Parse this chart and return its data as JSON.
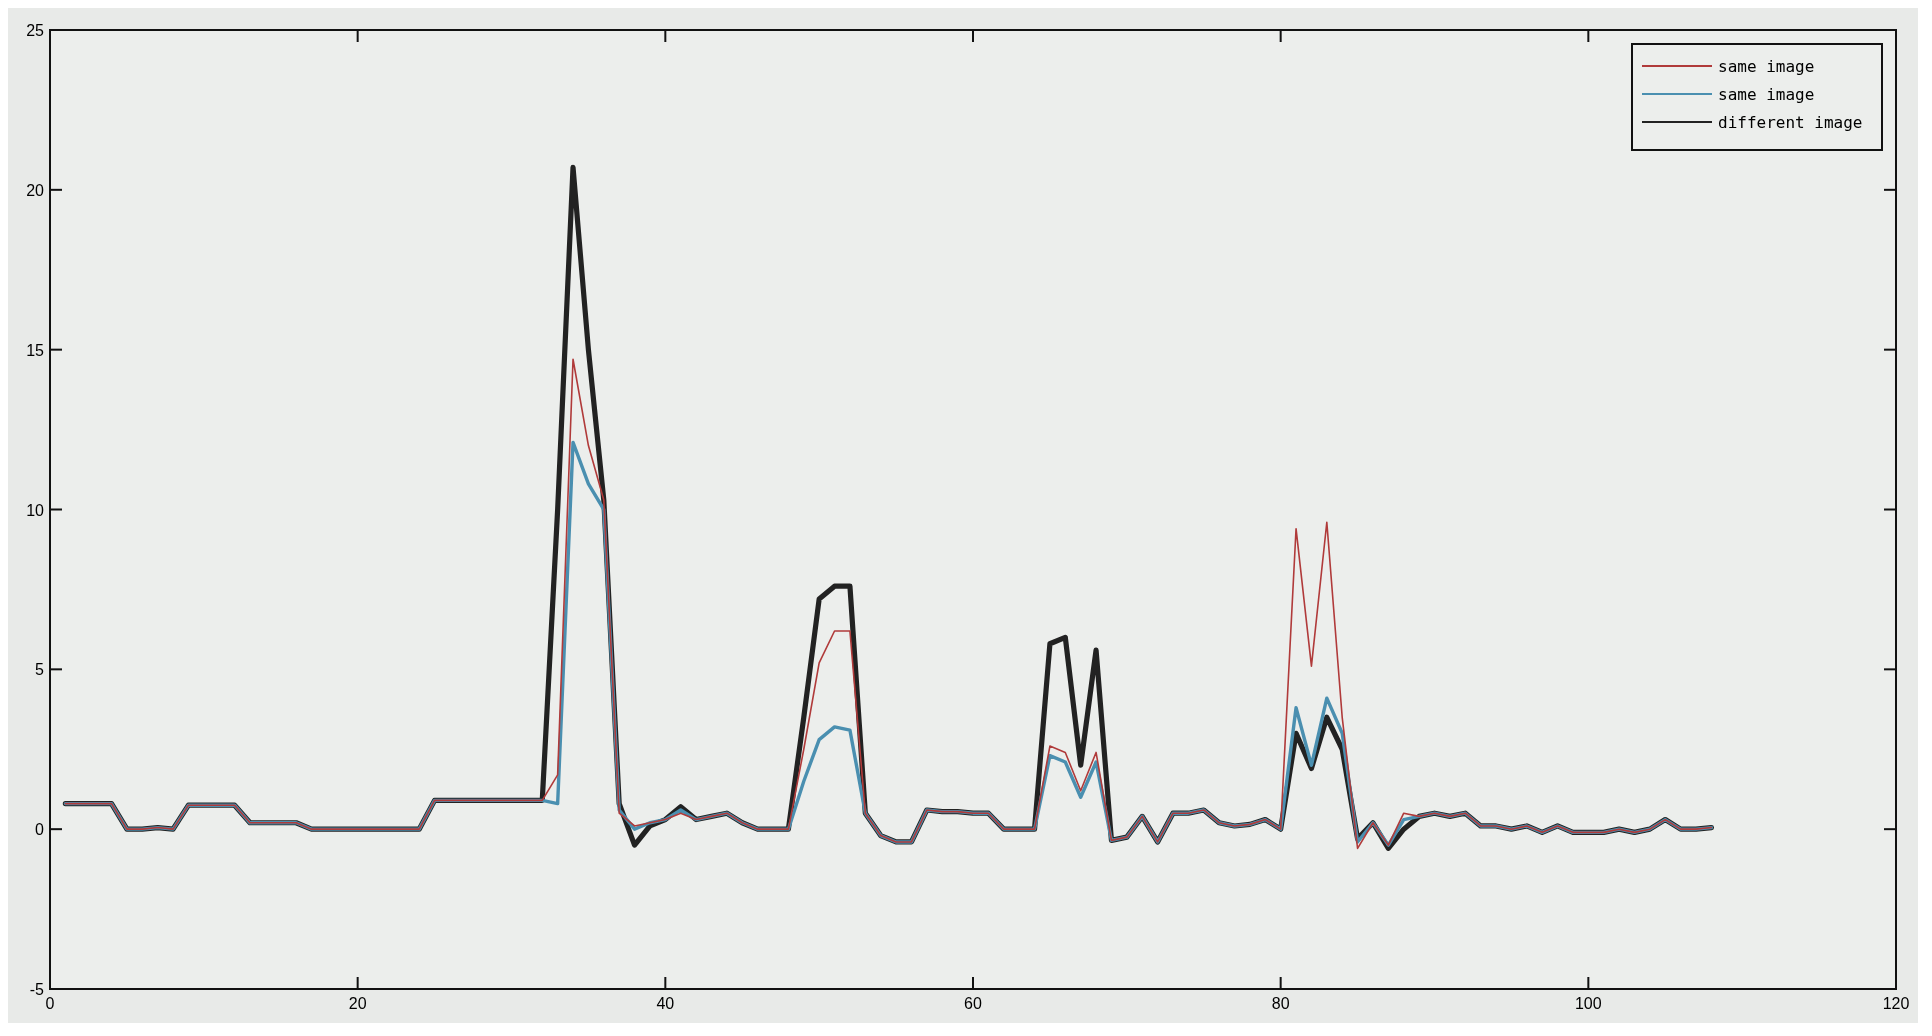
{
  "chart_data": {
    "type": "line",
    "x": [
      1,
      2,
      3,
      4,
      5,
      6,
      7,
      8,
      9,
      10,
      11,
      12,
      13,
      14,
      15,
      16,
      17,
      18,
      19,
      20,
      21,
      22,
      23,
      24,
      25,
      26,
      27,
      28,
      29,
      30,
      31,
      32,
      33,
      34,
      35,
      36,
      37,
      38,
      39,
      40,
      41,
      42,
      43,
      44,
      45,
      46,
      47,
      48,
      49,
      50,
      51,
      52,
      53,
      54,
      55,
      56,
      57,
      58,
      59,
      60,
      61,
      62,
      63,
      64,
      65,
      66,
      67,
      68,
      69,
      70,
      71,
      72,
      73,
      74,
      75,
      76,
      77,
      78,
      79,
      80,
      81,
      82,
      83,
      84,
      85,
      86,
      87,
      88,
      89,
      90,
      91,
      92,
      93,
      94,
      95,
      96,
      97,
      98,
      99,
      100,
      101,
      102,
      103,
      104,
      105,
      106,
      107,
      108
    ],
    "series": [
      {
        "name": "same image",
        "color": "#b03a3a",
        "values": [
          0.8,
          0.8,
          0.8,
          0.8,
          0,
          0,
          0.05,
          0,
          0.75,
          0.75,
          0.75,
          0.75,
          0.2,
          0.2,
          0.2,
          0.2,
          0,
          0,
          0,
          0,
          0,
          0,
          0,
          0,
          0.9,
          0.9,
          0.9,
          0.9,
          0.9,
          0.9,
          0.9,
          0.9,
          1.7,
          14.7,
          12,
          10.3,
          0.5,
          0.1,
          0.2,
          0.3,
          0.5,
          0.3,
          0.4,
          0.5,
          0.2,
          0,
          0,
          0,
          2.5,
          5.2,
          6.2,
          6.2,
          0.5,
          -0.2,
          -0.4,
          -0.4,
          0.6,
          0.55,
          0.55,
          0.5,
          0.5,
          0,
          0,
          0,
          2.6,
          2.4,
          1.2,
          2.4,
          -0.35,
          -0.25,
          0.4,
          -0.4,
          0.5,
          0.5,
          0.6,
          0.2,
          0.1,
          0.15,
          0.3,
          0,
          9.4,
          5.1,
          9.6,
          3.5,
          -0.6,
          0.2,
          -0.5,
          0.5,
          0.4,
          0.5,
          0.4,
          0.5,
          0.1,
          0.1,
          0,
          0.1,
          -0.1,
          0.1,
          -0.1,
          -0.1,
          -0.1,
          0,
          -0.1,
          0,
          0.3,
          0,
          0,
          0.05
        ]
      },
      {
        "name": "same image",
        "color": "#4a8fb0",
        "values": [
          0.8,
          0.8,
          0.8,
          0.8,
          0,
          0,
          0.05,
          0,
          0.75,
          0.75,
          0.75,
          0.75,
          0.2,
          0.2,
          0.2,
          0.2,
          0,
          0,
          0,
          0,
          0,
          0,
          0,
          0,
          0.9,
          0.9,
          0.9,
          0.9,
          0.9,
          0.9,
          0.9,
          0.9,
          0.8,
          12.1,
          10.8,
          10,
          0.6,
          0,
          0.2,
          0.3,
          0.6,
          0.3,
          0.4,
          0.5,
          0.2,
          0,
          0,
          0,
          1.5,
          2.8,
          3.2,
          3.1,
          0.5,
          -0.2,
          -0.4,
          -0.4,
          0.6,
          0.55,
          0.55,
          0.5,
          0.5,
          0,
          0,
          0,
          2.3,
          2.1,
          1.0,
          2.1,
          -0.35,
          -0.25,
          0.4,
          -0.4,
          0.5,
          0.5,
          0.6,
          0.2,
          0.1,
          0.15,
          0.3,
          0,
          3.8,
          2.0,
          4.1,
          3.0,
          -0.4,
          0.2,
          -0.5,
          0.3,
          0.4,
          0.5,
          0.4,
          0.5,
          0.1,
          0.1,
          0,
          0.1,
          -0.1,
          0.1,
          -0.1,
          -0.1,
          -0.1,
          0,
          -0.1,
          0,
          0.3,
          0,
          0,
          0.05
        ]
      },
      {
        "name": "different image",
        "color": "#222222",
        "values": [
          0.8,
          0.8,
          0.8,
          0.8,
          0,
          0,
          0.05,
          0,
          0.75,
          0.75,
          0.75,
          0.75,
          0.2,
          0.2,
          0.2,
          0.2,
          0,
          0,
          0,
          0,
          0,
          0,
          0,
          0,
          0.9,
          0.9,
          0.9,
          0.9,
          0.9,
          0.9,
          0.9,
          0.9,
          10,
          20.7,
          15,
          10.3,
          0.8,
          -0.5,
          0.1,
          0.3,
          0.7,
          0.3,
          0.4,
          0.5,
          0.2,
          0,
          0,
          0,
          3.5,
          7.2,
          7.6,
          7.6,
          0.5,
          -0.2,
          -0.4,
          -0.4,
          0.6,
          0.55,
          0.55,
          0.5,
          0.5,
          0,
          0,
          0,
          5.8,
          6.0,
          2.0,
          5.6,
          -0.35,
          -0.25,
          0.4,
          -0.4,
          0.5,
          0.5,
          0.6,
          0.2,
          0.1,
          0.15,
          0.3,
          0,
          3.0,
          1.9,
          3.5,
          2.5,
          -0.3,
          0.2,
          -0.6,
          0,
          0.4,
          0.5,
          0.4,
          0.5,
          0.1,
          0.1,
          0,
          0.1,
          -0.1,
          0.1,
          -0.1,
          -0.1,
          -0.1,
          0,
          -0.1,
          0,
          0.3,
          0,
          0,
          0.05
        ]
      }
    ],
    "xlim": [
      0,
      120
    ],
    "xticks": [
      0,
      20,
      40,
      60,
      80,
      100,
      120
    ],
    "ylim": [
      -5,
      25
    ],
    "yticks": [
      -5,
      0,
      5,
      10,
      15,
      20,
      25
    ],
    "grid": false,
    "legend": "top right",
    "marker": "none",
    "line_style": "solid"
  }
}
